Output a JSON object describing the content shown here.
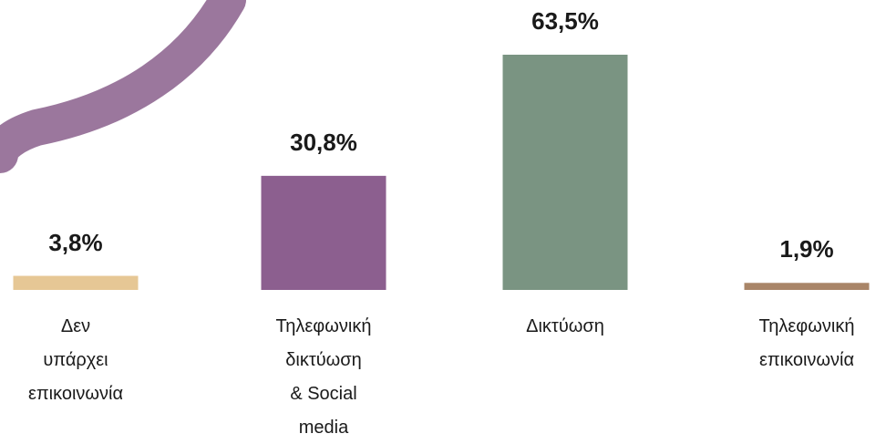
{
  "chart_data": {
    "type": "bar",
    "categories": [
      "Δεν\nυπάρχει\nεπικοινωνία",
      "Τηλεφωνική\nδικτύωση\n& Social\nmedia",
      "Δικτύωση",
      "Τηλεφωνική\nεπικοινωνία"
    ],
    "values": [
      3.8,
      30.8,
      63.5,
      1.9
    ],
    "value_labels": [
      "3,8%",
      "30,8%",
      "63,5%",
      "1,9%"
    ],
    "colors": [
      "#e6c795",
      "#8c5f8f",
      "#7a9482",
      "#a98568"
    ]
  }
}
